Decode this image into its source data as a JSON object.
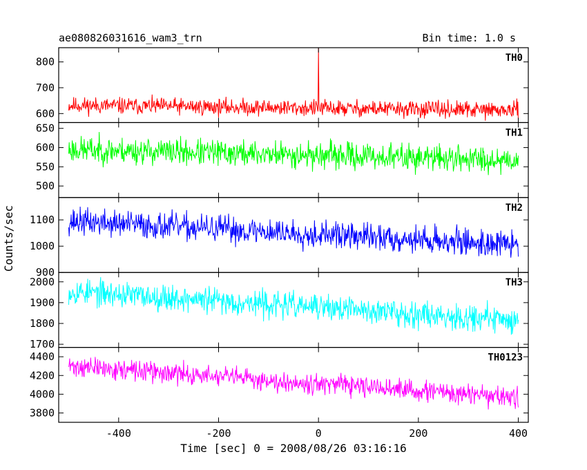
{
  "chart_data": {
    "type": "line",
    "title_left": "ae080826031616_wam3_trn",
    "title_right": "Bin time: 1.0 s",
    "xlabel": "Time [sec] 0 = 2008/08/26 03:16:16",
    "ylabel": "Counts/sec",
    "xlim": [
      -520,
      420
    ],
    "x_ticks": [
      -400,
      -200,
      0,
      200,
      400
    ],
    "x_range": [
      -500,
      400
    ],
    "panels": [
      {
        "name": "TH0",
        "color": "#ff0000",
        "ylim": [
          565,
          855
        ],
        "yticks": [
          600,
          700,
          800
        ],
        "trend": [
          [
            -500,
            632
          ],
          [
            400,
            612
          ]
        ],
        "amplitude": 28,
        "seed": 11,
        "spikes": [
          {
            "x": 0,
            "value": 855
          }
        ]
      },
      {
        "name": "TH1",
        "color": "#00ff00",
        "ylim": [
          470,
          665
        ],
        "yticks": [
          500,
          550,
          600,
          650
        ],
        "trend": [
          [
            -500,
            595
          ],
          [
            400,
            568
          ]
        ],
        "amplitude": 30,
        "seed": 23,
        "spikes": []
      },
      {
        "name": "TH2",
        "color": "#0000ff",
        "ylim": [
          900,
          1185
        ],
        "yticks": [
          900,
          1000,
          1100
        ],
        "trend": [
          [
            -500,
            1095
          ],
          [
            400,
            1005
          ]
        ],
        "amplitude": 45,
        "seed": 37,
        "spikes": []
      },
      {
        "name": "TH3",
        "color": "#00ffff",
        "ylim": [
          1685,
          2045
        ],
        "yticks": [
          1700,
          1800,
          1900,
          2000
        ],
        "trend": [
          [
            -500,
            1955
          ],
          [
            400,
            1815
          ]
        ],
        "amplitude": 55,
        "seed": 53,
        "spikes": []
      },
      {
        "name": "TH0123",
        "color": "#ff00ff",
        "ylim": [
          3700,
          4500
        ],
        "yticks": [
          3800,
          4000,
          4200,
          4400
        ],
        "trend": [
          [
            -500,
            4300
          ],
          [
            400,
            3960
          ]
        ],
        "amplitude": 95,
        "seed": 71,
        "spikes": []
      }
    ]
  }
}
